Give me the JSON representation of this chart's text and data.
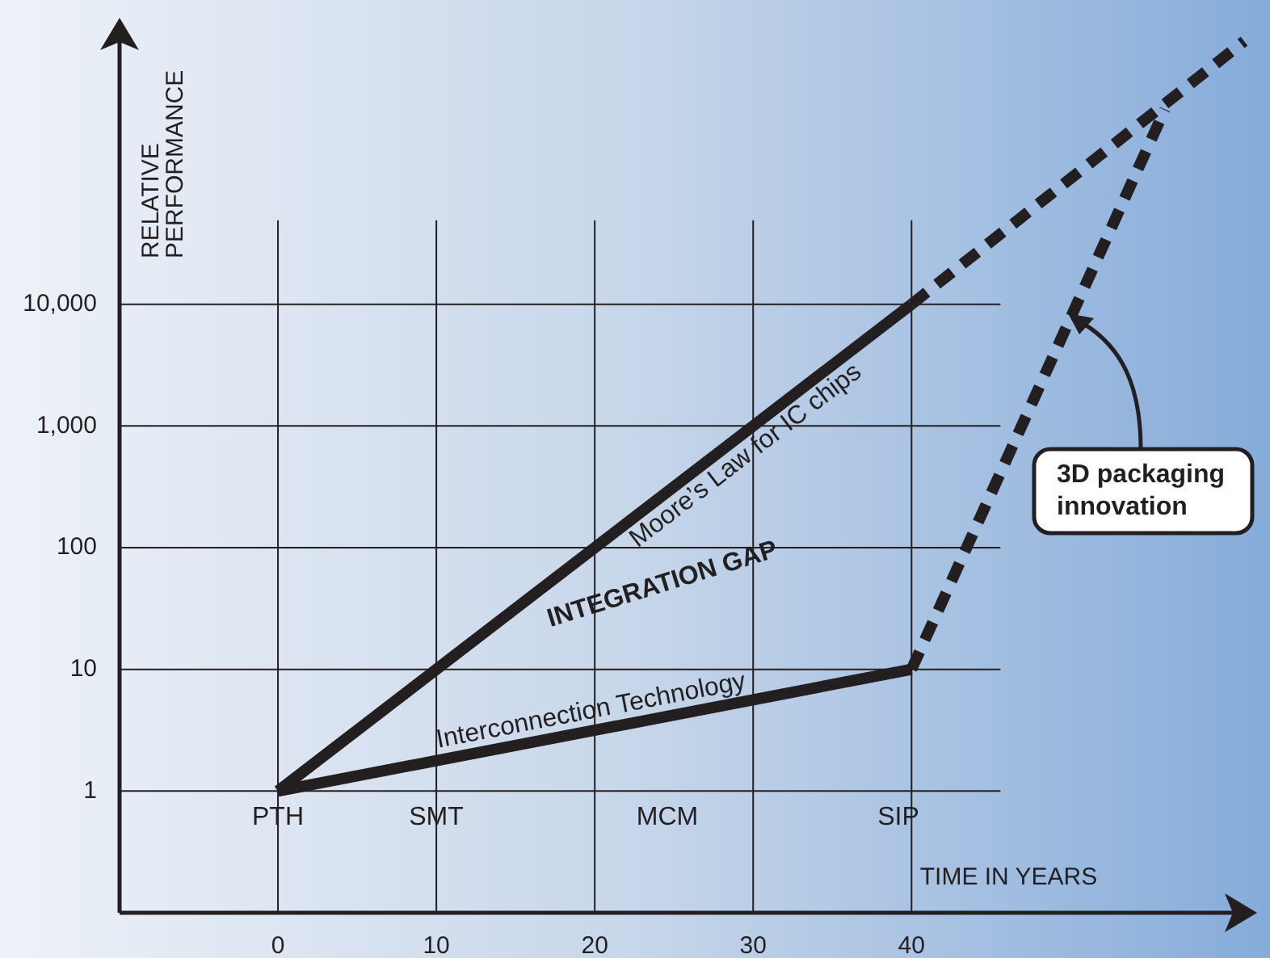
{
  "chart_data": {
    "type": "line",
    "xlabel": "TIME IN YEARS",
    "ylabel": "RELATIVE PERFORMANCE",
    "log": "y",
    "xlim": [
      -10,
      61
    ],
    "xticks": [
      0,
      10,
      20,
      30,
      40
    ],
    "ylim": [
      0.1,
      2000000
    ],
    "yticks": [
      1,
      10,
      100,
      {
        "value": 1000,
        "label": "1,000"
      },
      {
        "value": 10000,
        "label": "10,000"
      }
    ],
    "grid": true,
    "legend": false,
    "marker": "none",
    "series": [
      {
        "name": "Moore’s Law for IC chips",
        "color": "#231f20",
        "line_style": "solid",
        "x": [
          0,
          40
        ],
        "values": [
          1,
          10000
        ]
      },
      {
        "name": "Interconnection Technology",
        "color": "#231f20",
        "line_style": "solid",
        "x": [
          0,
          40
        ],
        "values": [
          1,
          10
        ]
      },
      {
        "color": "#231f20",
        "line_style": "dashed",
        "x": [
          40,
          61
        ],
        "values": [
          10000,
          1450000
        ]
      },
      {
        "color": "#231f20",
        "line_style": "dashed",
        "x": [
          40,
          56
        ],
        "values": [
          10,
          400000
        ]
      }
    ],
    "annotations": [
      "PTH",
      "SMT",
      "MCM",
      "SIP",
      "INTEGRATION GAP",
      "3D packaging innovation"
    ]
  }
}
